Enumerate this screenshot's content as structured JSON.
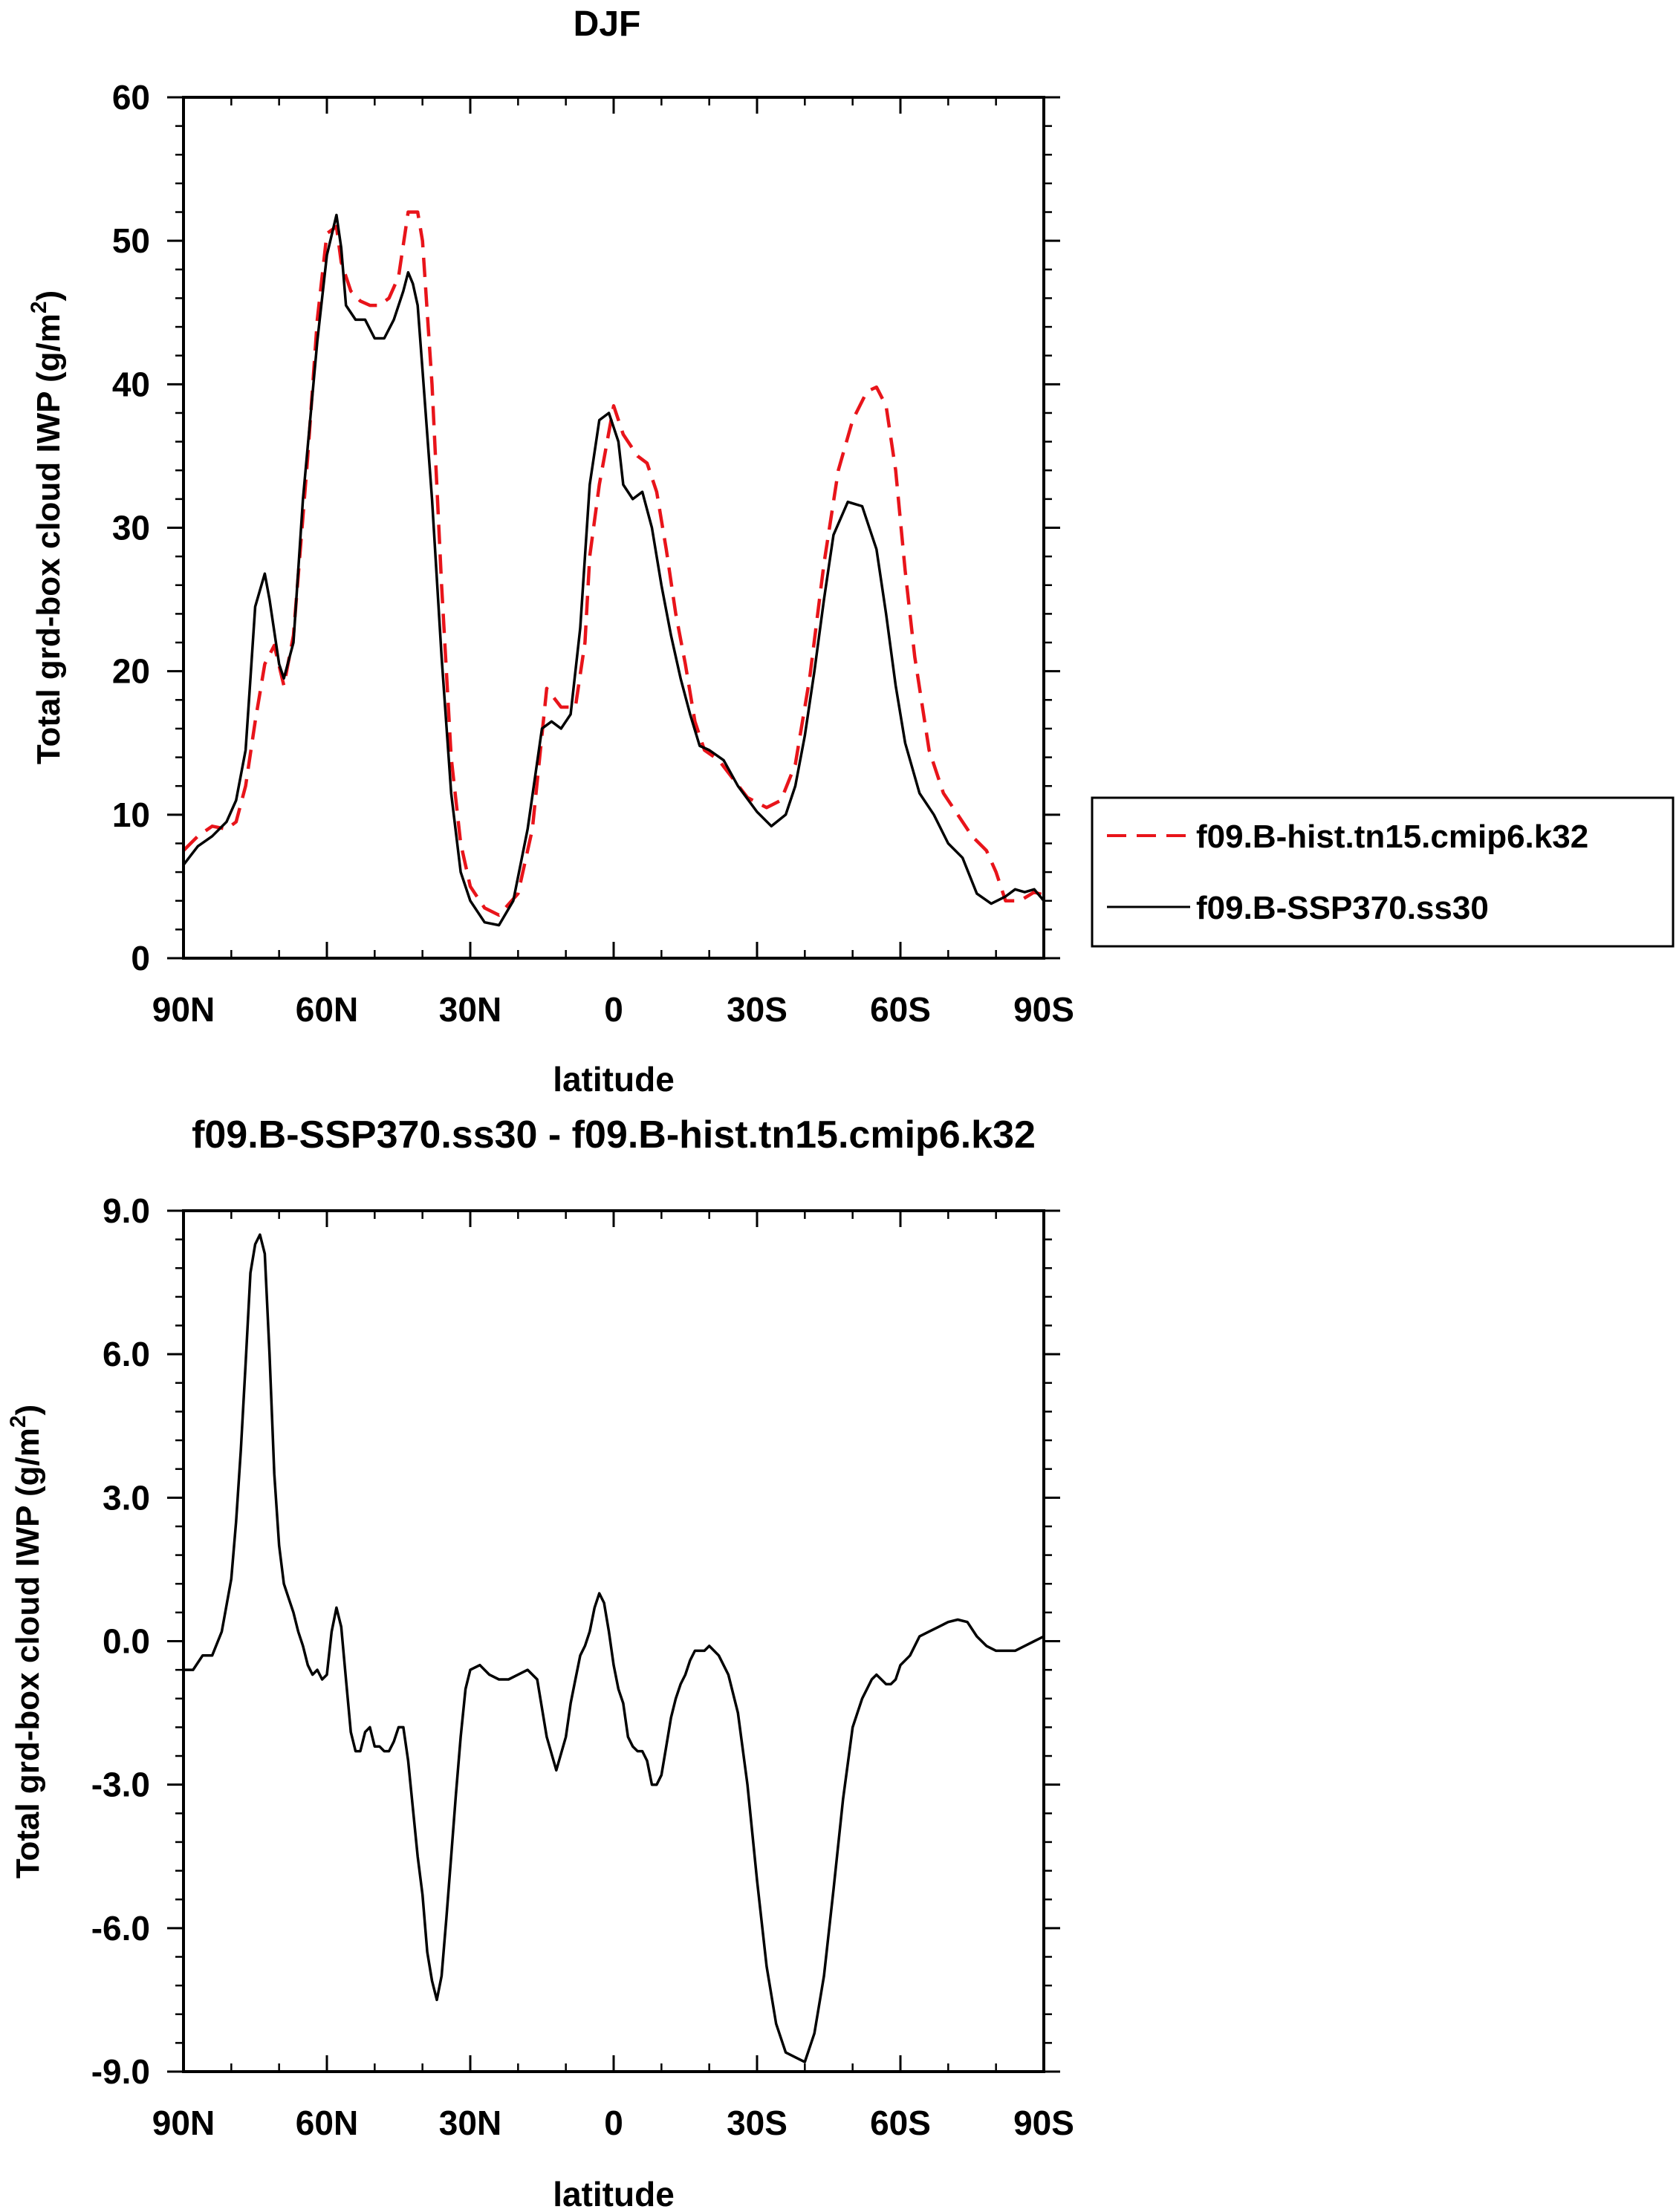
{
  "chart_data": [
    {
      "type": "line",
      "title": "DJF",
      "xlabel": "latitude",
      "ylabel_main": "Total grd-box cloud IWP (g/m",
      "ylabel_sup": "2",
      "ylabel_close": ")",
      "xlim": [
        90,
        -90
      ],
      "ylim": [
        0,
        60
      ],
      "x_ticks": [
        {
          "value": 90,
          "label": "90N"
        },
        {
          "value": 60,
          "label": "60N"
        },
        {
          "value": 30,
          "label": "30N"
        },
        {
          "value": 0,
          "label": "0"
        },
        {
          "value": -30,
          "label": "30S"
        },
        {
          "value": -60,
          "label": "60S"
        },
        {
          "value": -90,
          "label": "90S"
        }
      ],
      "y_ticks": [
        {
          "value": 0,
          "label": "0"
        },
        {
          "value": 10,
          "label": "10"
        },
        {
          "value": 20,
          "label": "20"
        },
        {
          "value": 30,
          "label": "30"
        },
        {
          "value": 40,
          "label": "40"
        },
        {
          "value": 50,
          "label": "50"
        },
        {
          "value": 60,
          "label": "60"
        }
      ],
      "legend_position": "right",
      "series": [
        {
          "name": "f09.B-hist.tn15.cmip6.k32",
          "color": "#e8141a",
          "dash": true,
          "x": [
            90,
            87,
            84,
            81,
            79,
            77,
            75,
            73,
            71,
            69,
            67,
            64,
            62,
            60,
            58,
            57,
            55,
            53,
            51,
            49,
            47,
            45,
            43,
            41,
            40,
            38,
            36,
            34,
            32,
            30,
            27,
            24,
            20,
            17,
            14,
            11,
            8,
            6,
            5,
            3,
            0,
            -2,
            -5,
            -7,
            -9,
            -11,
            -13,
            -15,
            -17,
            -19,
            -22,
            -25,
            -28,
            -32,
            -35,
            -38,
            -41,
            -44,
            -47,
            -50,
            -53,
            -55,
            -57,
            -59,
            -61,
            -63,
            -66,
            -69,
            -72,
            -75,
            -78,
            -80,
            -82,
            -85,
            -88,
            -90
          ],
          "y": [
            7.5,
            8.5,
            9.2,
            9.0,
            9.5,
            12.0,
            16.5,
            20.5,
            21.8,
            19.0,
            22.5,
            35.0,
            44.5,
            50.5,
            51.0,
            48.5,
            46.5,
            45.8,
            45.5,
            45.5,
            46.0,
            47.5,
            52.0,
            52.0,
            50.0,
            40.0,
            26.0,
            14.0,
            8.0,
            5.0,
            3.5,
            3.0,
            4.5,
            9.0,
            18.8,
            17.5,
            17.5,
            22.0,
            28.0,
            33.0,
            38.5,
            36.5,
            35.0,
            34.5,
            32.5,
            28.5,
            24.0,
            20.5,
            16.5,
            14.5,
            13.8,
            12.5,
            11.2,
            10.5,
            11.0,
            13.5,
            19.5,
            27.5,
            34.0,
            37.5,
            39.5,
            39.8,
            38.5,
            34.0,
            27.0,
            21.0,
            14.5,
            11.5,
            10.0,
            8.5,
            7.5,
            6.0,
            4.0,
            4.0,
            4.6,
            4.4
          ]
        },
        {
          "name": "f09.B-SSP370.ss30",
          "color": "#000000",
          "dash": false,
          "x": [
            90,
            87,
            84,
            81,
            79,
            77,
            76,
            75,
            73,
            72,
            70,
            69,
            67,
            65,
            62,
            60,
            58,
            57,
            56,
            54,
            52,
            50,
            48,
            46,
            44,
            43,
            42,
            41,
            40,
            38,
            36,
            34,
            32,
            30,
            27,
            24,
            21,
            18,
            15,
            13,
            11,
            9,
            7,
            5,
            3,
            1,
            -1,
            -2,
            -4,
            -6,
            -8,
            -10,
            -12,
            -14,
            -16,
            -18,
            -20,
            -23,
            -26,
            -30,
            -33,
            -36,
            -38,
            -40,
            -42,
            -44,
            -46,
            -49,
            -52,
            -55,
            -57,
            -59,
            -61,
            -64,
            -67,
            -70,
            -73,
            -76,
            -79,
            -82,
            -84,
            -86,
            -88,
            -90
          ],
          "y": [
            6.5,
            7.8,
            8.5,
            9.5,
            11.0,
            14.5,
            19.5,
            24.5,
            26.8,
            25.0,
            20.5,
            19.5,
            22.0,
            32.0,
            43.0,
            49.0,
            51.8,
            49.5,
            45.5,
            44.5,
            44.5,
            43.2,
            43.2,
            44.5,
            46.5,
            47.8,
            47.0,
            45.5,
            41.0,
            32.0,
            21.0,
            11.5,
            6.0,
            4.0,
            2.5,
            2.3,
            4.0,
            9.0,
            16.0,
            16.5,
            16.0,
            17.0,
            23.0,
            33.0,
            37.5,
            38.0,
            36.0,
            33.0,
            32.0,
            32.5,
            30.0,
            26.0,
            22.5,
            19.5,
            17.0,
            14.8,
            14.5,
            13.8,
            12.0,
            10.2,
            9.2,
            10.0,
            12.0,
            15.5,
            20.0,
            25.0,
            29.5,
            31.8,
            31.5,
            28.5,
            24.0,
            19.0,
            15.0,
            11.5,
            10.0,
            8.0,
            7.0,
            4.5,
            3.8,
            4.3,
            4.8,
            4.6,
            4.8,
            4.0
          ]
        }
      ]
    },
    {
      "type": "line",
      "title": "f09.B-SSP370.ss30 - f09.B-hist.tn15.cmip6.k32",
      "xlabel": "latitude",
      "ylabel_main": "Total grd-box cloud IWP (g/m",
      "ylabel_sup": "2",
      "ylabel_close": ")",
      "xlim": [
        90,
        -90
      ],
      "ylim": [
        -9,
        9
      ],
      "x_ticks": [
        {
          "value": 90,
          "label": "90N"
        },
        {
          "value": 60,
          "label": "60N"
        },
        {
          "value": 30,
          "label": "30N"
        },
        {
          "value": 0,
          "label": "0"
        },
        {
          "value": -30,
          "label": "30S"
        },
        {
          "value": -60,
          "label": "60S"
        },
        {
          "value": -90,
          "label": "90S"
        }
      ],
      "y_ticks": [
        {
          "value": -9,
          "label": "-9.0"
        },
        {
          "value": -6,
          "label": "-6.0"
        },
        {
          "value": -3,
          "label": "-3.0"
        },
        {
          "value": 0,
          "label": "0.0"
        },
        {
          "value": 3,
          "label": "3.0"
        },
        {
          "value": 6,
          "label": "6.0"
        },
        {
          "value": 9,
          "label": "9.0"
        }
      ],
      "series": [
        {
          "name": "",
          "color": "#000000",
          "dash": false,
          "x": [
            90,
            88,
            86,
            84,
            82,
            80,
            79,
            78,
            77,
            76,
            75,
            74,
            73,
            72,
            71,
            70,
            69,
            68,
            67,
            66,
            65,
            64,
            63,
            62,
            61,
            60,
            59,
            58,
            57,
            56,
            55,
            54,
            53,
            52,
            51,
            50,
            49,
            48,
            47,
            46,
            45,
            44,
            43,
            42,
            41,
            40,
            39,
            38,
            37,
            36,
            35,
            34,
            33,
            32,
            31,
            30,
            28,
            26,
            24,
            22,
            20,
            18,
            16,
            14,
            12,
            10,
            9,
            8,
            7,
            6,
            5,
            4,
            3,
            2,
            1,
            0,
            -1,
            -2,
            -3,
            -4,
            -5,
            -6,
            -7,
            -8,
            -9,
            -10,
            -11,
            -12,
            -13,
            -14,
            -15,
            -16,
            -17,
            -18,
            -19,
            -20,
            -22,
            -24,
            -26,
            -28,
            -30,
            -32,
            -34,
            -36,
            -38,
            -40,
            -42,
            -44,
            -46,
            -48,
            -50,
            -51,
            -52,
            -53,
            -54,
            -55,
            -56,
            -57,
            -58,
            -59,
            -60,
            -62,
            -64,
            -66,
            -68,
            -70,
            -72,
            -74,
            -76,
            -78,
            -80,
            -82,
            -84,
            -86,
            -88,
            -90
          ],
          "y": [
            -0.6,
            -0.6,
            -0.3,
            -0.3,
            0.2,
            1.3,
            2.5,
            4.0,
            5.8,
            7.7,
            8.3,
            8.5,
            8.1,
            6.0,
            3.5,
            2.0,
            1.2,
            0.9,
            0.6,
            0.2,
            -0.1,
            -0.5,
            -0.7,
            -0.6,
            -0.8,
            -0.7,
            0.2,
            0.7,
            0.3,
            -0.8,
            -1.9,
            -2.3,
            -2.3,
            -1.9,
            -1.8,
            -2.2,
            -2.2,
            -2.3,
            -2.3,
            -2.1,
            -1.8,
            -1.8,
            -2.5,
            -3.5,
            -4.5,
            -5.3,
            -6.5,
            -7.1,
            -7.5,
            -7.0,
            -5.8,
            -4.5,
            -3.2,
            -2.0,
            -1.0,
            -0.6,
            -0.5,
            -0.7,
            -0.8,
            -0.8,
            -0.7,
            -0.6,
            -0.8,
            -2.0,
            -2.7,
            -2.0,
            -1.3,
            -0.8,
            -0.3,
            -0.1,
            0.2,
            0.7,
            1.0,
            0.8,
            0.2,
            -0.5,
            -1.0,
            -1.3,
            -2.0,
            -2.2,
            -2.3,
            -2.3,
            -2.5,
            -3.0,
            -3.0,
            -2.8,
            -2.2,
            -1.6,
            -1.2,
            -0.9,
            -0.7,
            -0.4,
            -0.2,
            -0.2,
            -0.2,
            -0.1,
            -0.3,
            -0.7,
            -1.5,
            -3.0,
            -5.0,
            -6.8,
            -8.0,
            -8.6,
            -8.7,
            -8.8,
            -8.2,
            -7.0,
            -5.2,
            -3.3,
            -1.8,
            -1.5,
            -1.2,
            -1.0,
            -0.8,
            -0.7,
            -0.8,
            -0.9,
            -0.9,
            -0.8,
            -0.5,
            -0.3,
            0.1,
            0.2,
            0.3,
            0.4,
            0.45,
            0.4,
            0.1,
            -0.1,
            -0.2,
            -0.2,
            -0.2,
            -0.1,
            0.0,
            0.1
          ]
        }
      ]
    }
  ]
}
